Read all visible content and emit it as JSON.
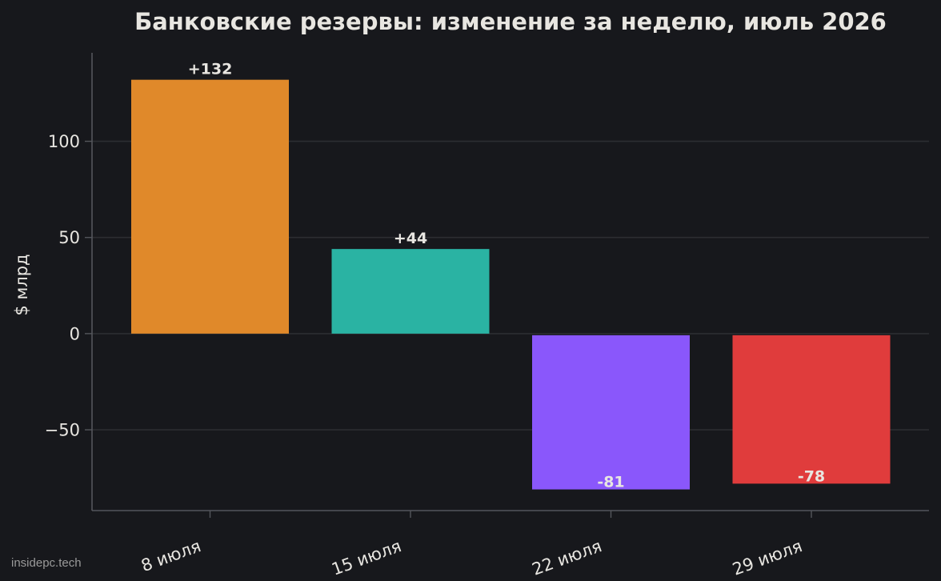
{
  "chart_data": {
    "type": "bar",
    "title": "Банковские резервы: изменение за неделю, июль 2026",
    "xlabel": "",
    "ylabel": "$ млрд",
    "categories": [
      "8 июля",
      "15 июля",
      "22 июля",
      "29 июля"
    ],
    "values": [
      132,
      44,
      -81,
      -78
    ],
    "data_labels": [
      "+132",
      "+44",
      "-81",
      "-78"
    ],
    "colors": [
      "#e0892a",
      "#2ab3a3",
      "#8a57fb",
      "#e03c3c"
    ],
    "ylim": [
      -92,
      146
    ],
    "yticks": [
      -50,
      0,
      50,
      100
    ],
    "ytick_labels": [
      "−50",
      "0",
      "50",
      "100"
    ],
    "grid": true,
    "legend": "none"
  },
  "watermark": "insidepc.tech",
  "theme": {
    "background": "#17181c",
    "text": "#e8e6e1",
    "grid": "#2c2d31",
    "axis": "#54565c"
  }
}
